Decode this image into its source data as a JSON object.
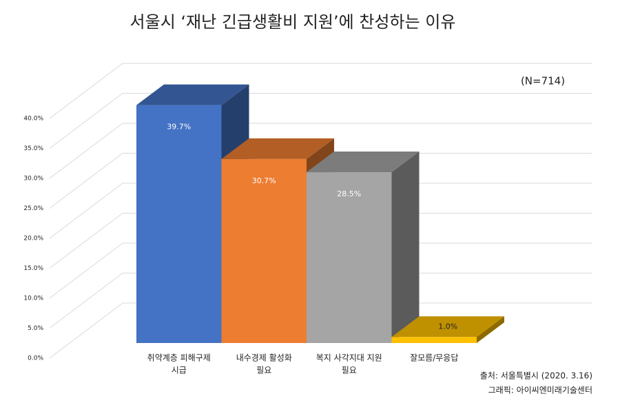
{
  "chart_data": {
    "type": "bar3d",
    "title": "서울시 ‘재난 긴급생활비 지원’에 찬성하는 이유",
    "annotation": "(N=714)",
    "source": "출처: 서울특별시 (2020. 3.16)",
    "credit": "그래픽: 아이씨엔미래기술센터",
    "categories": [
      [
        "취약계층 피해구제",
        "시급"
      ],
      [
        "내수경제 활성화",
        "필요"
      ],
      [
        "복지 사각지대 지원",
        "필요"
      ],
      [
        "잘모름/무응답"
      ]
    ],
    "values": [
      39.7,
      30.7,
      28.5,
      1.0
    ],
    "value_labels": [
      "39.7%",
      "30.7%",
      "28.5%",
      "1.0%"
    ],
    "colors": [
      "#4472c4",
      "#ed7d31",
      "#a5a5a5",
      "#ffc000"
    ],
    "ylim": [
      0,
      40
    ],
    "yticks": [
      {
        "value": 0,
        "label": "0.0%"
      },
      {
        "value": 5,
        "label": "5.0%"
      },
      {
        "value": 10,
        "label": "10.0%"
      },
      {
        "value": 15,
        "label": "15.0%"
      },
      {
        "value": 20,
        "label": "20.0%"
      },
      {
        "value": 25,
        "label": "25.0%"
      },
      {
        "value": 30,
        "label": "30.0%"
      },
      {
        "value": 35,
        "label": "35.0%"
      },
      {
        "value": 40,
        "label": "40.0%"
      }
    ],
    "grid": true
  }
}
